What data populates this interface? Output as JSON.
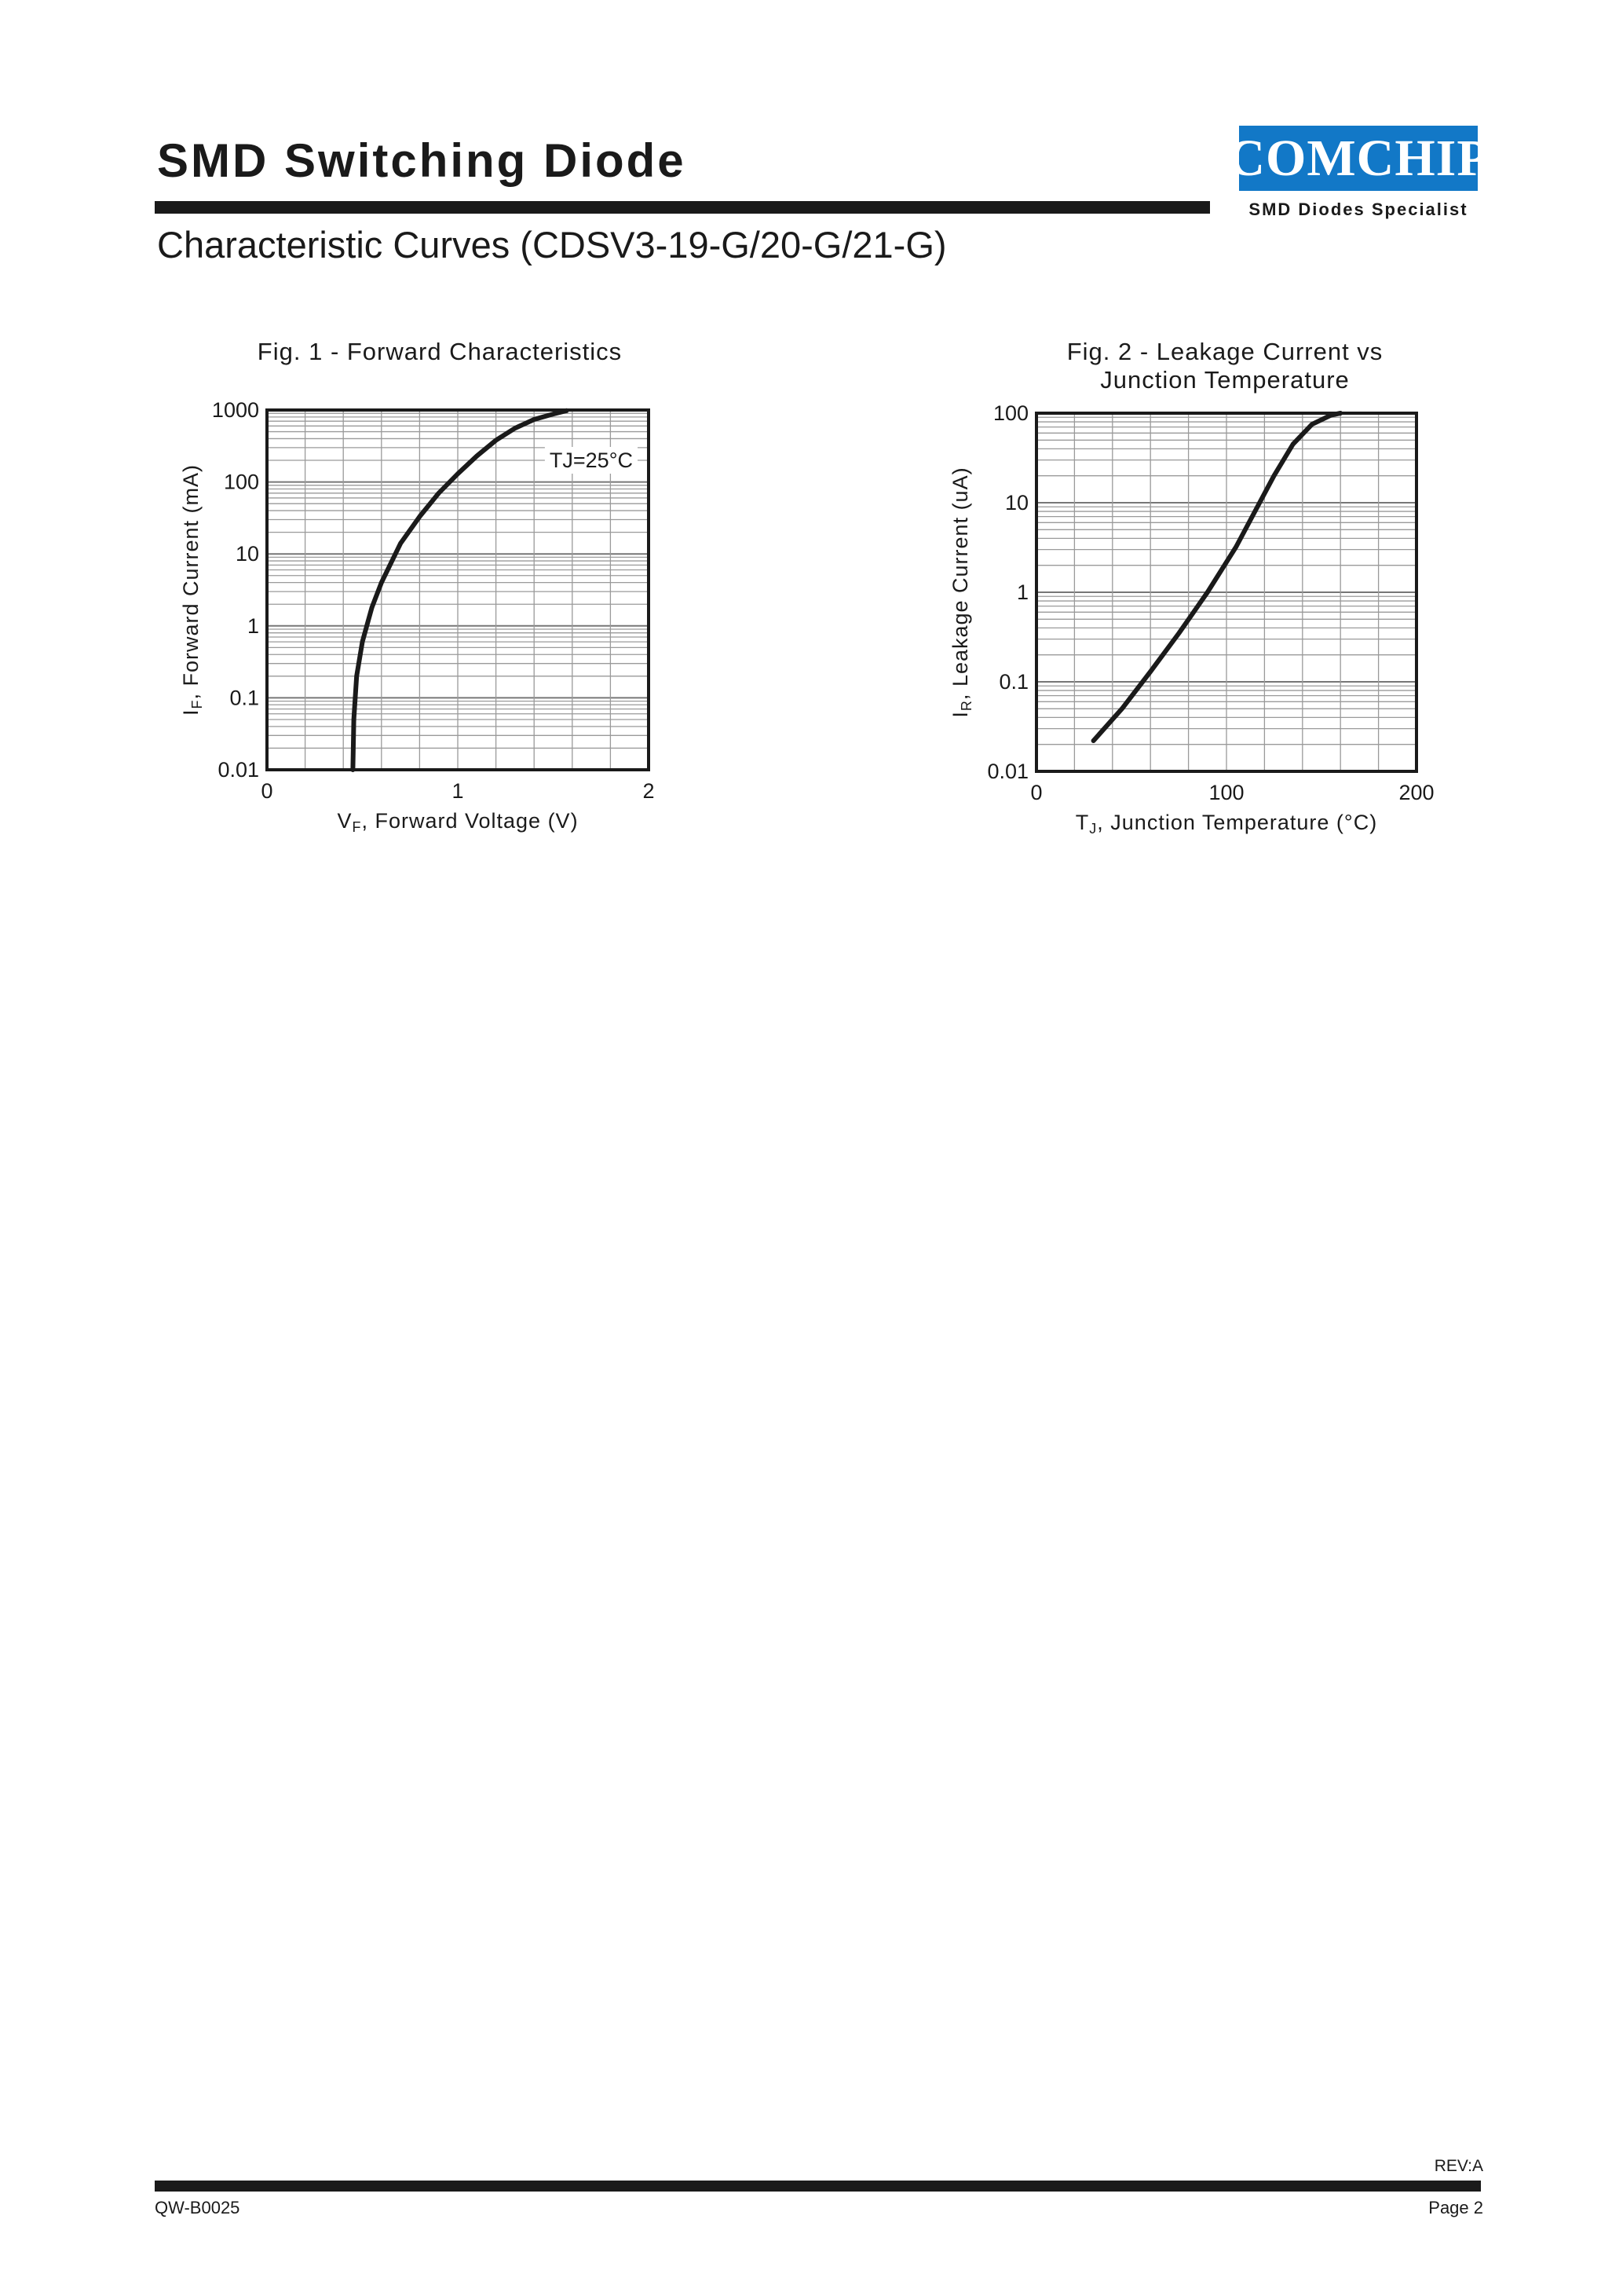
{
  "header": {
    "title": "SMD Switching Diode",
    "subtitle": "Characteristic Curves (CDSV3-19-G/20-G/21-G)",
    "logo_text": "COMCHIP",
    "logo_tagline": "SMD Diodes Specialist",
    "logo_color": "#1278c7"
  },
  "footer": {
    "revision": "REV:A",
    "doc_code": "QW-B0025",
    "page": "Page 2"
  },
  "chart_data": [
    {
      "type": "line",
      "title": "Fig. 1 - Forward Characteristics",
      "xlabel": "VF, Forward Voltage (V)",
      "ylabel": "IF, Forward Current (mA)",
      "xlim": [
        0,
        2
      ],
      "ylim": [
        0.01,
        1000
      ],
      "yscale": "log",
      "grid": true,
      "xticks": [
        "0",
        "1",
        "2"
      ],
      "yticks": [
        "0.01",
        "0.1",
        "1",
        "10",
        "100",
        "1000"
      ],
      "annotation": "TJ=25°C",
      "series": [
        {
          "x": [
            0.45,
            0.455,
            0.47,
            0.5,
            0.55,
            0.6,
            0.7,
            0.8,
            0.9,
            1.0,
            1.1,
            1.2,
            1.3,
            1.4,
            1.5,
            1.57
          ],
          "y": [
            0.01,
            0.05,
            0.2,
            0.6,
            1.8,
            4,
            14,
            33,
            70,
            130,
            230,
            380,
            560,
            740,
            880,
            980
          ]
        }
      ]
    },
    {
      "type": "line",
      "title": "Fig. 2 - Leakage Current vs Junction Temperature",
      "xlabel": "TJ, Junction Temperature (°C)",
      "ylabel": "IR, Leakage Current (uA)",
      "xlim": [
        0,
        200
      ],
      "ylim": [
        0.01,
        100
      ],
      "yscale": "log",
      "grid": true,
      "xticks": [
        "0",
        "100",
        "200"
      ],
      "yticks": [
        "0.01",
        "0.1",
        "1",
        "10",
        "100"
      ],
      "series": [
        {
          "x": [
            30,
            45,
            60,
            75,
            90,
            105,
            115,
            125,
            135,
            145,
            155,
            160
          ],
          "y": [
            0.022,
            0.05,
            0.13,
            0.35,
            1.0,
            3.2,
            8,
            20,
            45,
            75,
            95,
            100
          ]
        }
      ]
    }
  ]
}
